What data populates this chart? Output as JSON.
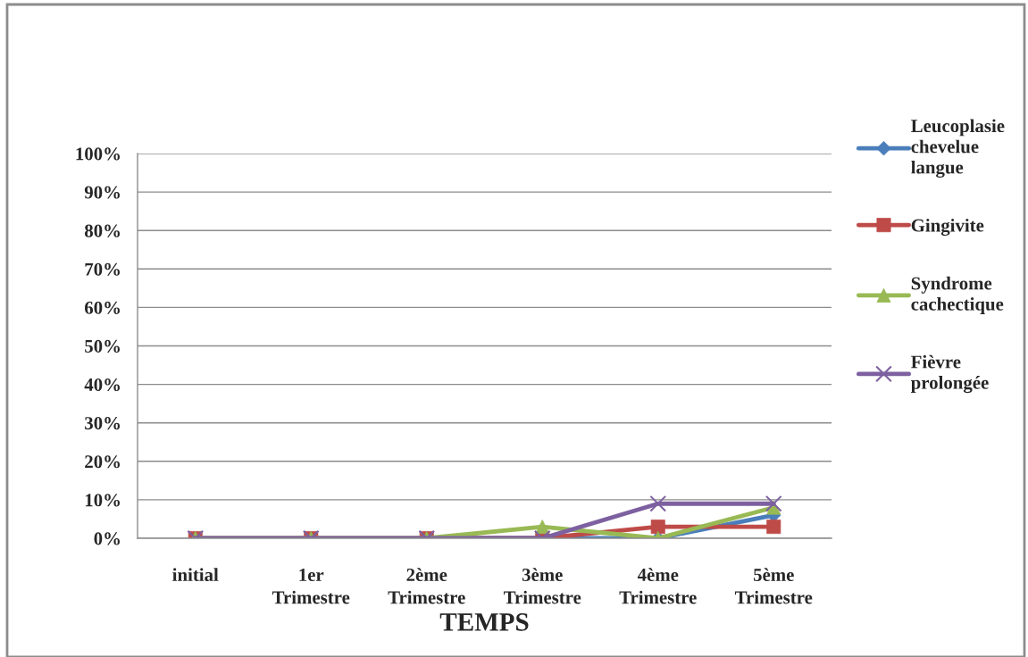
{
  "chart_data": {
    "type": "line",
    "xlabel": "TEMPS",
    "categories": [
      "initial",
      "1er Trimestre",
      "2ème Trimestre",
      "3ème Trimestre",
      "4ème Trimestre",
      "5ème Trimestre"
    ],
    "series": [
      {
        "name": "Leucoplasie chevelue langue",
        "color": "#4a7ebb",
        "marker": "diamond",
        "values": [
          null,
          null,
          0,
          0,
          0,
          6
        ]
      },
      {
        "name": "Gingivite",
        "color": "#be4b48",
        "marker": "square",
        "values": [
          0,
          0,
          0,
          0,
          3,
          3
        ]
      },
      {
        "name": "Syndrome cachectique",
        "color": "#98b954",
        "marker": "triangle",
        "values": [
          0,
          0,
          0,
          3,
          0,
          8
        ]
      },
      {
        "name": "Fièvre prolongée",
        "color": "#7d60a0",
        "marker": "cross",
        "values": [
          0,
          0,
          0,
          0,
          9,
          9
        ]
      }
    ],
    "ylim": [
      0,
      100
    ],
    "yticks": [
      {
        "value": 0,
        "label": "0%"
      },
      {
        "value": 10,
        "label": "10%"
      },
      {
        "value": 20,
        "label": "20%"
      },
      {
        "value": 30,
        "label": "30%"
      },
      {
        "value": 40,
        "label": "40%"
      },
      {
        "value": 50,
        "label": "50%"
      },
      {
        "value": 60,
        "label": "60%"
      },
      {
        "value": 70,
        "label": "70%"
      },
      {
        "value": 80,
        "label": "80%"
      },
      {
        "value": 90,
        "label": "90%"
      },
      {
        "value": 100,
        "label": "100%"
      }
    ],
    "grid": "y",
    "legend": "right",
    "line_style": "solid"
  }
}
